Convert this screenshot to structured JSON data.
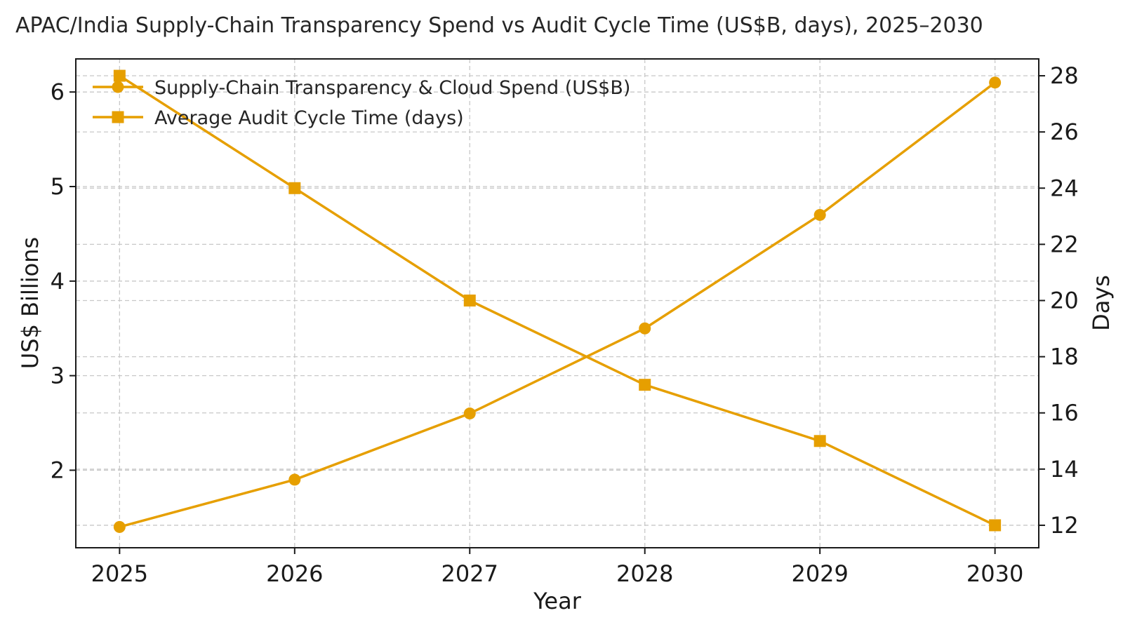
{
  "chart_data": {
    "type": "line",
    "title": "APAC/India Supply-Chain Transparency Spend vs Audit Cycle Time (US$B, days), 2025–2030",
    "xlabel": "Year",
    "ylabel_left": "US$ Billions",
    "ylabel_right": "Days",
    "x": [
      2025,
      2026,
      2027,
      2028,
      2029,
      2030
    ],
    "x_tick_labels": [
      "2025",
      "2026",
      "2027",
      "2028",
      "2029",
      "2030"
    ],
    "xlim": [
      2024.75,
      2030.25
    ],
    "ylim_left": [
      1.18,
      6.35
    ],
    "ylim_right": [
      11.2,
      28.6
    ],
    "y_ticks_left": [
      "2",
      "3",
      "4",
      "5",
      "6"
    ],
    "y_ticks_right": [
      "12",
      "14",
      "16",
      "18",
      "20",
      "22",
      "24",
      "26",
      "28"
    ],
    "grid": true,
    "legend_position": "top-left",
    "series": [
      {
        "name": "Supply-Chain Transparency & Cloud Spend (US$B)",
        "axis": "left",
        "marker": "circle",
        "color": "#E69F00",
        "values": [
          1.4,
          1.9,
          2.6,
          3.5,
          4.7,
          6.1
        ]
      },
      {
        "name": "Average Audit Cycle Time (days)",
        "axis": "right",
        "marker": "square",
        "color": "#E69F00",
        "values": [
          28,
          24,
          20,
          17,
          15,
          12
        ]
      }
    ]
  }
}
